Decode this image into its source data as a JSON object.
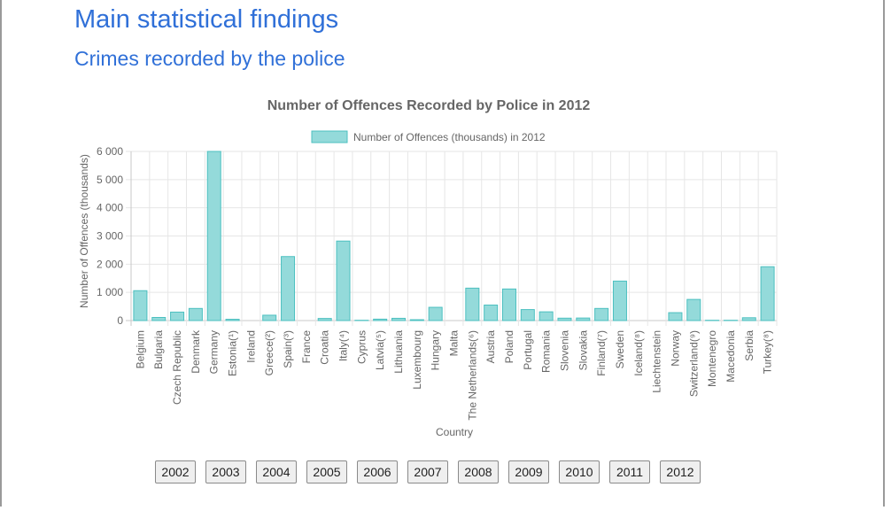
{
  "page": {
    "title": "Main statistical findings",
    "subtitle": "Crimes recorded by the police"
  },
  "year_buttons": [
    "2002",
    "2003",
    "2004",
    "2005",
    "2006",
    "2007",
    "2008",
    "2009",
    "2010",
    "2011",
    "2012"
  ],
  "colors": {
    "heading": "#3070d8",
    "bar_fill": "#94dada",
    "bar_stroke": "#4cc0c0"
  },
  "chart_data": {
    "type": "bar",
    "title": "Number of Offences Recorded by Police in 2012",
    "xlabel": "Country",
    "ylabel": "Number of Offences (thousands)",
    "ylim": [
      0,
      6000
    ],
    "yticks": [
      0,
      1000,
      2000,
      3000,
      4000,
      5000,
      6000
    ],
    "ytick_labels": [
      "0",
      "1 000",
      "2 000",
      "3 000",
      "4 000",
      "5 000",
      "6 000"
    ],
    "legend_position": "top",
    "grid": true,
    "categories": [
      "Belgium",
      "Bulgaria",
      "Czech Republic",
      "Denmark",
      "Germany",
      "Estonia(¹)",
      "Ireland",
      "Greece(²)",
      "Spain(³)",
      "France",
      "Croatia",
      "Italy(⁴)",
      "Cyprus",
      "Latvia(⁵)",
      "Lithuania",
      "Luxembourg",
      "Hungary",
      "Malta",
      "The Netherlands(⁶)",
      "Austria",
      "Poland",
      "Portugal",
      "Romania",
      "Slovenia",
      "Slovakia",
      "Finland(⁷)",
      "Sweden",
      "Iceland(⁸)",
      "Liechtenstein",
      "Norway",
      "Switzerland(⁹)",
      "Montenegro",
      "Macedonia",
      "Serbia",
      "Turkey(⁸)"
    ],
    "series": [
      {
        "name": "Number of Offences (thousands) in 2012",
        "values": [
          1060,
          110,
          300,
          430,
          6000,
          45,
          0,
          190,
          2270,
          0,
          75,
          2820,
          10,
          50,
          80,
          30,
          470,
          0,
          1150,
          550,
          1120,
          390,
          310,
          85,
          90,
          430,
          1400,
          0,
          0,
          280,
          750,
          10,
          10,
          100,
          1910
        ]
      }
    ]
  }
}
